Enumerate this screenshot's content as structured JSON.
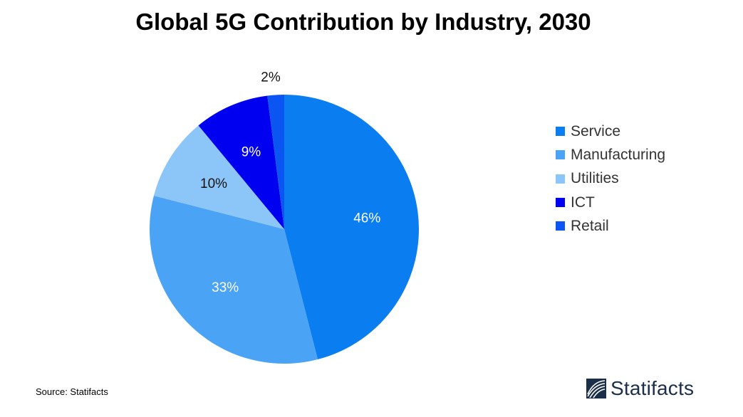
{
  "title": "Global 5G Contribution by Industry, 2030",
  "source": "Source: Statifacts",
  "brand": {
    "name": "Statifacts",
    "icon": "statifacts-logo-icon"
  },
  "chart_data": {
    "type": "pie",
    "title": "Global 5G Contribution by Industry, 2030",
    "legend_position": "right",
    "start": "12 o'clock, clockwise",
    "slices": [
      {
        "name": "Service",
        "value": 46,
        "label": "46%",
        "color": "#0a7df0",
        "label_color": "#ffffff"
      },
      {
        "name": "Manufacturing",
        "value": 33,
        "label": "33%",
        "color": "#4aa3f5",
        "label_color": "#ffffff"
      },
      {
        "name": "Utilities",
        "value": 10,
        "label": "10%",
        "color": "#8cc6f8",
        "label_color": "#111111"
      },
      {
        "name": "ICT",
        "value": 9,
        "label": "9%",
        "color": "#0000f0",
        "label_color": "#ffffff"
      },
      {
        "name": "Retail",
        "value": 2,
        "label": "2%",
        "color": "#0b56f2",
        "label_color": "#111111"
      }
    ]
  }
}
